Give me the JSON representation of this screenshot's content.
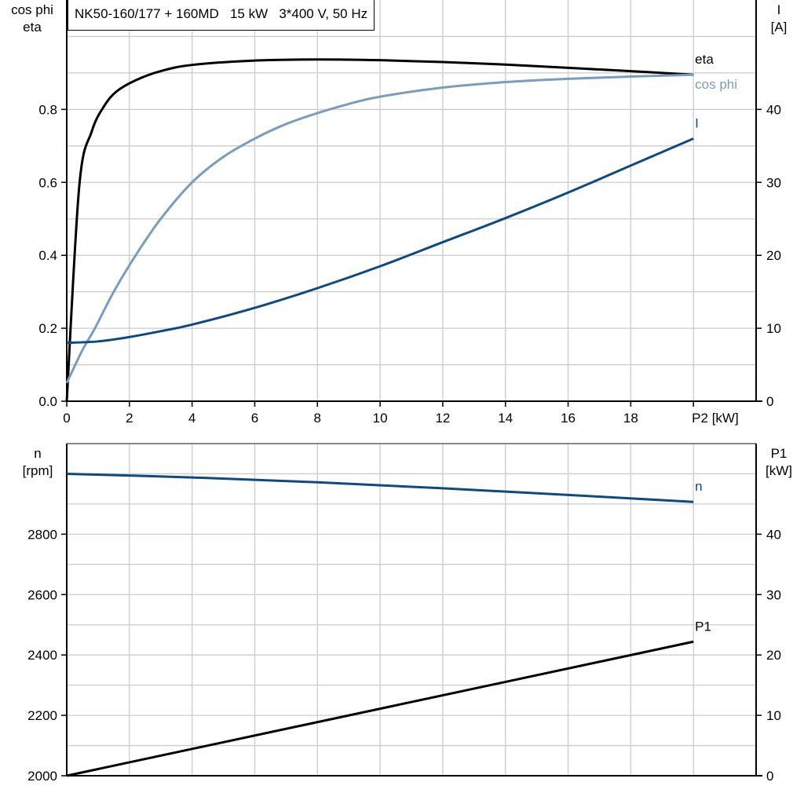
{
  "title": "NK50-160/177 + 160MD   15 kW   3*400 V, 50 Hz",
  "colors": {
    "eta": "#000000",
    "cos_phi": "#7a9cbd",
    "I": "#0e4a82",
    "n": "#0e4a82",
    "P1": "#000000",
    "grid": "#cccccc"
  },
  "chart_data": [
    {
      "type": "line",
      "xlabel": "P2 [kW]",
      "xlim": [
        0,
        22
      ],
      "xticks": [
        0,
        2,
        4,
        6,
        8,
        10,
        12,
        14,
        16,
        18
      ],
      "ylabel_left": [
        "cos phi",
        "eta"
      ],
      "ylim_left": [
        0,
        1.1
      ],
      "yticks_left": [
        "0.0",
        "0.2",
        "0.4",
        "0.6",
        "0.8"
      ],
      "ylabel_right": [
        "I",
        "[A]"
      ],
      "ylim_right": [
        0,
        55
      ],
      "yticks_right": [
        "0",
        "10",
        "20",
        "30",
        "40"
      ],
      "grid": true,
      "series": [
        {
          "name": "eta",
          "axis": "left",
          "color": "#000000",
          "x": [
            0,
            0.4,
            0.8,
            1.2,
            1.6,
            2.2,
            3,
            4,
            6,
            8,
            10,
            12,
            14,
            16,
            18,
            20
          ],
          "y": [
            0,
            0.59,
            0.74,
            0.81,
            0.85,
            0.88,
            0.905,
            0.922,
            0.934,
            0.937,
            0.935,
            0.93,
            0.923,
            0.914,
            0.905,
            0.895
          ]
        },
        {
          "name": "cos phi",
          "axis": "left",
          "color": "#7a9cbd",
          "x": [
            0,
            0.5,
            0.9,
            1.5,
            2.2,
            3,
            4,
            5,
            6,
            7,
            8,
            9,
            10,
            12,
            14,
            16,
            18,
            20
          ],
          "y": [
            0.05,
            0.14,
            0.2,
            0.3,
            0.4,
            0.5,
            0.6,
            0.67,
            0.72,
            0.76,
            0.79,
            0.815,
            0.835,
            0.86,
            0.875,
            0.884,
            0.89,
            0.895
          ]
        },
        {
          "name": "I",
          "axis": "right",
          "color": "#0e4a82",
          "x": [
            0,
            1,
            2,
            3,
            4,
            6,
            8,
            10,
            12,
            14,
            16,
            18,
            20
          ],
          "y": [
            8,
            8.2,
            8.8,
            9.6,
            10.5,
            12.8,
            15.5,
            18.5,
            21.8,
            25.1,
            28.6,
            32.3,
            36
          ]
        }
      ]
    },
    {
      "type": "line",
      "xlim": [
        0,
        22
      ],
      "ylabel_left": [
        "n",
        "[rpm]"
      ],
      "ylim_left": [
        2000,
        3100
      ],
      "yticks_left": [
        "2000",
        "2200",
        "2400",
        "2600",
        "2800"
      ],
      "ylabel_right": [
        "P1",
        "[kW]"
      ],
      "ylim_right": [
        0,
        55
      ],
      "yticks_right": [
        "0",
        "10",
        "20",
        "30",
        "40"
      ],
      "grid": true,
      "series": [
        {
          "name": "n",
          "axis": "left",
          "color": "#0e4a82",
          "x": [
            0,
            4,
            8,
            12,
            16,
            20
          ],
          "y": [
            3000,
            2988,
            2972,
            2952,
            2930,
            2907
          ]
        },
        {
          "name": "P1",
          "axis": "right",
          "color": "#000000",
          "x": [
            0,
            20
          ],
          "y": [
            0,
            22.2
          ]
        }
      ]
    }
  ]
}
